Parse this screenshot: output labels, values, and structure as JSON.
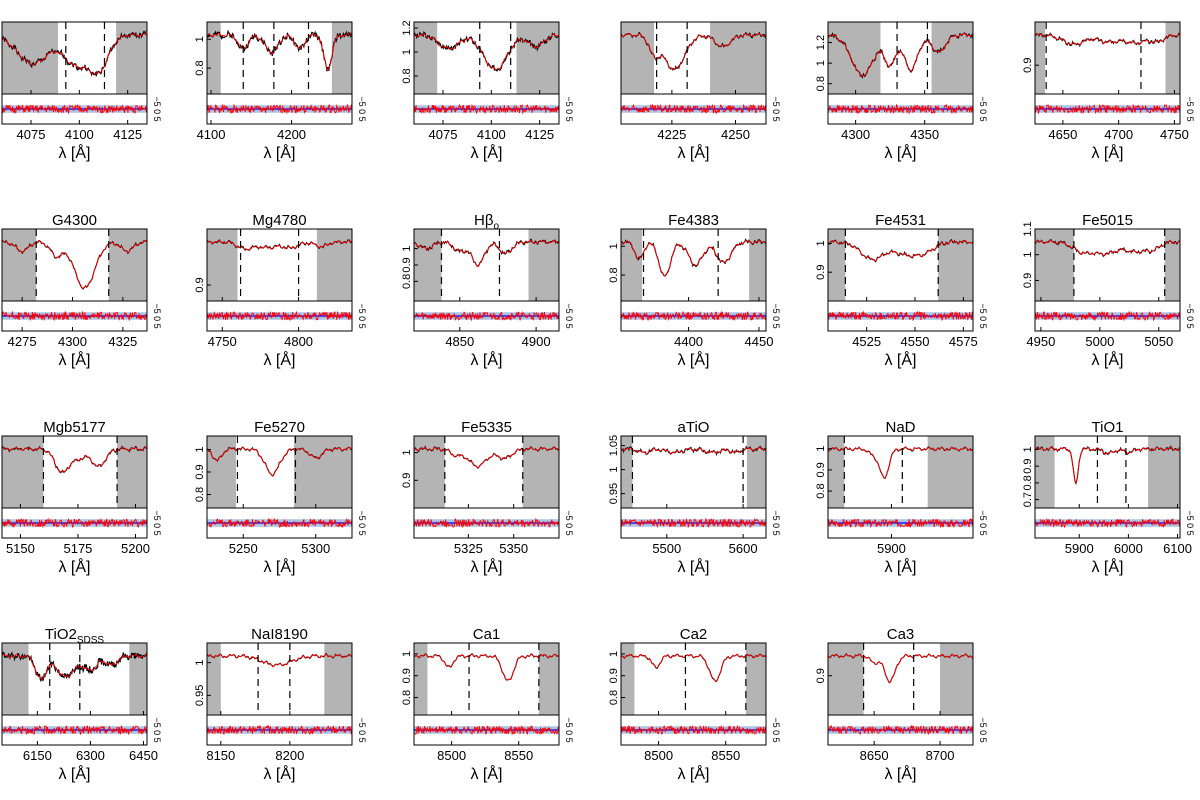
{
  "figure": {
    "xlabel": "λ [Å]",
    "residual_ticks": "−5 0 5",
    "colors": {
      "observed": "#000000",
      "model": "#ff0000",
      "residual": "#ff0000",
      "zero_line": "#0000ff",
      "band": "#a9c4e6",
      "mask": "#b4b4b4"
    }
  },
  "chart_data": [
    {
      "type": "line",
      "title": "",
      "sub": "",
      "xlim": [
        4060,
        4135
      ],
      "xticks": [
        4075,
        4100,
        4125
      ],
      "ylim": [
        0.8,
        1.25
      ],
      "yticks": [],
      "masks": [
        [
          4060,
          4089
        ],
        [
          4119,
          4135
        ]
      ],
      "dashes": [
        4093,
        4113
      ],
      "shape": {
        "lines": [
          [
            4076,
            0.25,
            8
          ],
          [
            4098,
            0.25,
            6
          ],
          [
            4110,
            0.3,
            5
          ]
        ],
        "noise": 0.02
      },
      "seed": 1
    },
    {
      "type": "line",
      "title": "",
      "sub": "",
      "xlim": [
        4095,
        4275
      ],
      "xticks": [
        4100,
        4200
      ],
      "ylim": [
        0.62,
        1.12
      ],
      "yticks": [
        0.8,
        1
      ],
      "masks": [
        [
          4095,
          4112
        ],
        [
          4250,
          4275
        ]
      ],
      "dashes": [
        4140,
        4178,
        4221
      ],
      "shape": {
        "lines": [
          [
            4140,
            0.12,
            6
          ],
          [
            4175,
            0.15,
            8
          ],
          [
            4210,
            0.12,
            6
          ],
          [
            4245,
            0.3,
            5
          ]
        ],
        "noise": 0.025
      },
      "seed": 2
    },
    {
      "type": "line",
      "title": "",
      "sub": "",
      "xlim": [
        4060,
        4135
      ],
      "xticks": [
        4075,
        4100,
        4125
      ],
      "ylim": [
        0.65,
        1.25
      ],
      "yticks": [
        0.8,
        1,
        1.2
      ],
      "masks": [
        [
          4060,
          4072
        ],
        [
          4113,
          4135
        ]
      ],
      "dashes": [
        4094,
        4110
      ],
      "shape": {
        "lines": [
          [
            4102,
            0.3,
            6
          ],
          [
            4078,
            0.12,
            5
          ],
          [
            4123,
            0.1,
            4
          ]
        ],
        "noise": 0.02
      },
      "seed": 3
    },
    {
      "type": "line",
      "title": "",
      "sub": "",
      "xlim": [
        4205,
        4262
      ],
      "xticks": [
        4225,
        4250
      ],
      "ylim": [
        0.7,
        1.25
      ],
      "yticks": [],
      "masks": [
        [
          4205,
          4218
        ],
        [
          4240,
          4262
        ]
      ],
      "dashes": [
        4219,
        4231
      ],
      "shape": {
        "lines": [
          [
            4226,
            0.3,
            4
          ],
          [
            4218,
            0.15,
            2
          ],
          [
            4245,
            0.1,
            3
          ]
        ],
        "noise": 0.01
      },
      "seed": 4
    },
    {
      "type": "line",
      "title": "",
      "sub": "",
      "xlim": [
        4280,
        4385
      ],
      "xticks": [
        4300,
        4350
      ],
      "ylim": [
        0.7,
        1.4
      ],
      "yticks": [
        0.8,
        1,
        1.2
      ],
      "masks": [
        [
          4280,
          4318
        ],
        [
          4355,
          4385
        ]
      ],
      "dashes": [
        4330,
        4352
      ],
      "shape": {
        "lines": [
          [
            4305,
            0.35,
            8
          ],
          [
            4325,
            0.25,
            4
          ],
          [
            4340,
            0.3,
            5
          ],
          [
            4360,
            0.15,
            5
          ]
        ],
        "noise": 0.015
      },
      "seed": 5
    },
    {
      "type": "line",
      "title": "",
      "sub": "",
      "xlim": [
        4625,
        4755
      ],
      "xticks": [
        4650,
        4700,
        4750
      ],
      "ylim": [
        0.82,
        1.02
      ],
      "yticks": [
        0.9
      ],
      "masks": [
        [
          4625,
          4634
        ],
        [
          4742,
          4755
        ]
      ],
      "dashes": [
        4635,
        4720
      ],
      "shape": {
        "lines": [
          [
            4660,
            0.08,
            10
          ],
          [
            4690,
            0.06,
            8
          ],
          [
            4715,
            0.07,
            10
          ],
          [
            4735,
            0.05,
            6
          ]
        ],
        "noise": 0.01
      },
      "seed": 6
    },
    {
      "type": "line",
      "title": "G4300",
      "sub": "",
      "xlim": [
        4265,
        4337
      ],
      "xticks": [
        4275,
        4300,
        4325
      ],
      "ylim": [
        0.55,
        1.1
      ],
      "yticks": [],
      "masks": [
        [
          4265,
          4282
        ],
        [
          4318,
          4337
        ]
      ],
      "dashes": [
        4282,
        4318
      ],
      "shape": {
        "lines": [
          [
            4306,
            0.4,
            5
          ],
          [
            4292,
            0.12,
            3
          ],
          [
            4275,
            0.08,
            3
          ],
          [
            4327,
            0.08,
            3
          ]
        ],
        "noise": 0.008
      },
      "seed": 7
    },
    {
      "type": "line",
      "title": "Mg4780",
      "sub": "",
      "xlim": [
        4740,
        4835
      ],
      "xticks": [
        4750,
        4800
      ],
      "ylim": [
        0.86,
        1.04
      ],
      "yticks": [
        0.9
      ],
      "masks": [
        [
          4740,
          4760
        ],
        [
          4812,
          4835
        ]
      ],
      "dashes": [
        4762,
        4800
      ],
      "shape": {
        "lines": [
          [
            4765,
            0.06,
            5
          ],
          [
            4780,
            0.05,
            6
          ],
          [
            4795,
            0.05,
            5
          ],
          [
            4815,
            0.04,
            4
          ]
        ],
        "noise": 0.008
      },
      "seed": 8
    },
    {
      "type": "line",
      "title": "Hβ",
      "sub": "o",
      "xlim": [
        4820,
        4915
      ],
      "xticks": [
        4850,
        4900
      ],
      "ylim": [
        0.68,
        1.12
      ],
      "yticks": [
        0.8,
        0.9,
        1
      ],
      "masks": [
        [
          4820,
          4838
        ],
        [
          4895,
          4915
        ]
      ],
      "dashes": [
        4838,
        4876
      ],
      "shape": {
        "lines": [
          [
            4862,
            0.2,
            4
          ],
          [
            4850,
            0.08,
            4
          ],
          [
            4880,
            0.1,
            4
          ],
          [
            4828,
            0.06,
            4
          ]
        ],
        "noise": 0.01
      },
      "seed": 9
    },
    {
      "type": "line",
      "title": "Fe4383",
      "sub": "",
      "xlim": [
        4352,
        4455
      ],
      "xticks": [
        4400,
        4450
      ],
      "ylim": [
        0.62,
        1.12
      ],
      "yticks": [
        0.8,
        1
      ],
      "masks": [
        [
          4352,
          4367
        ],
        [
          4443,
          4455
        ]
      ],
      "dashes": [
        4368,
        4421
      ],
      "shape": {
        "lines": [
          [
            4383,
            0.3,
            4
          ],
          [
            4405,
            0.2,
            5
          ],
          [
            4425,
            0.18,
            5
          ],
          [
            4365,
            0.15,
            3
          ]
        ],
        "noise": 0.01
      },
      "seed": 10
    },
    {
      "type": "line",
      "title": "Fe4531",
      "sub": "",
      "xlim": [
        4505,
        4580
      ],
      "xticks": [
        4525,
        4550,
        4575
      ],
      "ylim": [
        0.8,
        1.05
      ],
      "yticks": [
        0.9,
        1
      ],
      "masks": [
        [
          4505,
          4514
        ],
        [
          4562,
          4580
        ]
      ],
      "dashes": [
        4514,
        4562
      ],
      "shape": {
        "lines": [
          [
            4528,
            0.15,
            6
          ],
          [
            4545,
            0.1,
            6
          ],
          [
            4555,
            0.08,
            5
          ]
        ],
        "noise": 0.008
      },
      "seed": 11
    },
    {
      "type": "line",
      "title": "Fe5015",
      "sub": "",
      "xlim": [
        4945,
        5068
      ],
      "xticks": [
        4950,
        5000,
        5050
      ],
      "ylim": [
        0.82,
        1.1
      ],
      "yticks": [
        0.9,
        1,
        1.1
      ],
      "masks": [
        [
          4945,
          4978
        ],
        [
          5055,
          5068
        ]
      ],
      "dashes": [
        4978,
        5055
      ],
      "shape": {
        "lines": [
          [
            4985,
            0.08,
            8
          ],
          [
            5005,
            0.1,
            10
          ],
          [
            5030,
            0.08,
            8
          ],
          [
            5045,
            0.06,
            6
          ]
        ],
        "noise": 0.008
      },
      "seed": 12
    },
    {
      "type": "line",
      "title": "Mgb5177",
      "sub": "",
      "xlim": [
        5142,
        5205
      ],
      "xticks": [
        5150,
        5175,
        5200
      ],
      "ylim": [
        0.76,
        1.06
      ],
      "yticks": [],
      "masks": [
        [
          5142,
          5160
        ],
        [
          5192,
          5205
        ]
      ],
      "dashes": [
        5160,
        5192
      ],
      "shape": {
        "lines": [
          [
            5168,
            0.2,
            3
          ],
          [
            5184,
            0.15,
            3
          ],
          [
            5175,
            0.08,
            3
          ]
        ],
        "noise": 0.008
      },
      "seed": 13
    },
    {
      "type": "line",
      "title": "Fe5270",
      "sub": "",
      "xlim": [
        5225,
        5325
      ],
      "xticks": [
        5250,
        5300
      ],
      "ylim": [
        0.74,
        1.06
      ],
      "yticks": [
        0.8,
        0.9,
        1
      ],
      "masks": [
        [
          5225,
          5245
        ],
        [
          5285,
          5325
        ]
      ],
      "dashes": [
        5246,
        5286
      ],
      "shape": {
        "lines": [
          [
            5270,
            0.22,
            5
          ],
          [
            5232,
            0.1,
            3
          ],
          [
            5300,
            0.08,
            4
          ]
        ],
        "noise": 0.006
      },
      "seed": 14
    },
    {
      "type": "line",
      "title": "Fe5335",
      "sub": "",
      "xlim": [
        5295,
        5375
      ],
      "xticks": [
        5325,
        5350
      ],
      "ylim": [
        0.8,
        1.06
      ],
      "yticks": [
        0.9,
        1
      ],
      "masks": [
        [
          5295,
          5312
        ],
        [
          5355,
          5375
        ]
      ],
      "dashes": [
        5312,
        5355
      ],
      "shape": {
        "lines": [
          [
            5330,
            0.15,
            5
          ],
          [
            5345,
            0.08,
            4
          ],
          [
            5318,
            0.05,
            3
          ]
        ],
        "noise": 0.006
      },
      "seed": 15
    },
    {
      "type": "line",
      "title": "aTiO",
      "sub": "",
      "xlim": [
        5440,
        5630
      ],
      "xticks": [
        5500,
        5600
      ],
      "ylim": [
        0.92,
        1.07
      ],
      "yticks": [
        0.95,
        1,
        1.05
      ],
      "masks": [
        [
          5440,
          5455
        ],
        [
          5605,
          5630
        ]
      ],
      "dashes": [
        5455,
        5600
      ],
      "shape": {
        "lines": [
          [
            5470,
            0.03,
            8
          ],
          [
            5510,
            0.03,
            10
          ],
          [
            5560,
            0.03,
            10
          ],
          [
            5590,
            0.03,
            6
          ]
        ],
        "noise": 0.01
      },
      "seed": 16
    },
    {
      "type": "line",
      "title": "NaD",
      "sub": "",
      "xlim": [
        5830,
        5990
      ],
      "xticks": [
        5900
      ],
      "ylim": [
        0.72,
        1.06
      ],
      "yticks": [
        0.8,
        0.9,
        1
      ],
      "masks": [
        [
          5830,
          5848
        ],
        [
          5940,
          5990
        ]
      ],
      "dashes": [
        5848,
        5912
      ],
      "shape": {
        "lines": [
          [
            5892,
            0.25,
            5
          ],
          [
            5880,
            0.05,
            5
          ]
        ],
        "noise": 0.005
      },
      "seed": 17
    },
    {
      "type": "line",
      "title": "TiO1",
      "sub": "",
      "xlim": [
        5810,
        6105
      ],
      "xticks": [
        5900,
        6000,
        6100
      ],
      "ylim": [
        0.65,
        1.08
      ],
      "yticks": [
        0.7,
        0.8,
        0.9,
        1
      ],
      "masks": [
        [
          5810,
          5850
        ],
        [
          6040,
          6105
        ]
      ],
      "dashes": [
        5937,
        5995
      ],
      "shape": {
        "lines": [
          [
            5893,
            0.3,
            5
          ],
          [
            5960,
            0.04,
            10
          ],
          [
            6000,
            0.03,
            10
          ]
        ],
        "noise": 0.008
      },
      "seed": 18
    },
    {
      "type": "line",
      "title": "TiO2",
      "sub": "SDSS",
      "xlim": [
        6050,
        6460
      ],
      "xticks": [
        6150,
        6300,
        6450
      ],
      "ylim": [
        0.65,
        1.15
      ],
      "yticks": [],
      "masks": [
        [
          6050,
          6125
        ],
        [
          6410,
          6460
        ]
      ],
      "dashes": [
        6185,
        6270
      ],
      "shape": {
        "lines": [
          [
            6160,
            0.2,
            15
          ],
          [
            6230,
            0.18,
            25
          ],
          [
            6300,
            0.12,
            20
          ],
          [
            6360,
            0.08,
            15
          ]
        ],
        "noise": 0.03
      },
      "seed": 19
    },
    {
      "type": "line",
      "title": "NaI8190",
      "sub": "",
      "xlim": [
        8140,
        8245
      ],
      "xticks": [
        8150,
        8200
      ],
      "ylim": [
        0.92,
        1.03
      ],
      "yticks": [
        0.95,
        1
      ],
      "masks": [
        [
          8140,
          8150
        ],
        [
          8225,
          8245
        ]
      ],
      "dashes": [
        8177,
        8200
      ],
      "shape": {
        "lines": [
          [
            8185,
            0.05,
            8
          ],
          [
            8196,
            0.05,
            8
          ]
        ],
        "noise": 0.005
      },
      "seed": 20
    },
    {
      "type": "line",
      "title": "Ca1",
      "sub": "",
      "xlim": [
        8472,
        8580
      ],
      "xticks": [
        8500,
        8550
      ],
      "ylim": [
        0.72,
        1.05
      ],
      "yticks": [
        0.8,
        0.9,
        1
      ],
      "masks": [
        [
          8472,
          8482
        ],
        [
          8565,
          8580
        ]
      ],
      "dashes": [
        8513,
        8565
      ],
      "shape": {
        "lines": [
          [
            8542,
            0.22,
            4
          ],
          [
            8498,
            0.1,
            3
          ]
        ],
        "noise": 0.004
      },
      "seed": 21
    },
    {
      "type": "line",
      "title": "Ca2",
      "sub": "",
      "xlim": [
        8472,
        8580
      ],
      "xticks": [
        8500,
        8550
      ],
      "ylim": [
        0.72,
        1.05
      ],
      "yticks": [
        0.8,
        0.9,
        1
      ],
      "masks": [
        [
          8472,
          8482
        ],
        [
          8565,
          8580
        ]
      ],
      "dashes": [
        8520,
        8565
      ],
      "shape": {
        "lines": [
          [
            8542,
            0.22,
            4
          ],
          [
            8498,
            0.1,
            3
          ]
        ],
        "noise": 0.004
      },
      "seed": 22
    },
    {
      "type": "line",
      "title": "Ca3",
      "sub": "",
      "xlim": [
        8615,
        8725
      ],
      "xticks": [
        8650,
        8700
      ],
      "ylim": [
        0.72,
        1.05
      ],
      "yticks": [
        0.9
      ],
      "masks": [
        [
          8615,
          8642
        ],
        [
          8700,
          8725
        ]
      ],
      "dashes": [
        8642,
        8680
      ],
      "shape": {
        "lines": [
          [
            8662,
            0.22,
            4
          ],
          [
            8650,
            0.06,
            3
          ]
        ],
        "noise": 0.004
      },
      "seed": 23
    }
  ]
}
